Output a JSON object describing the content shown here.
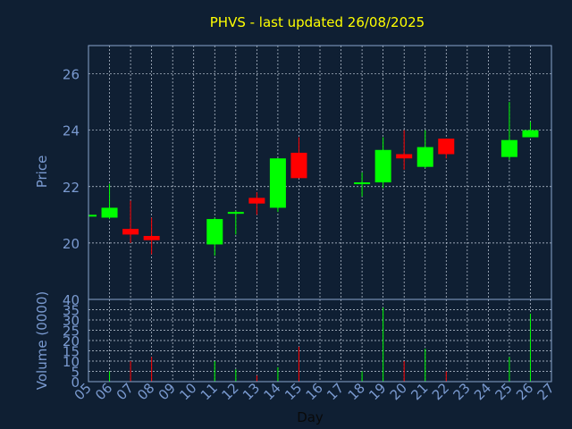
{
  "chart_data": [
    {
      "type": "candlestick",
      "title": "PHVS - last updated 26/08/2025",
      "ylabel": "Price",
      "ylim": [
        18,
        27
      ],
      "yticks": [
        20,
        22,
        24,
        26
      ],
      "grid": true,
      "x_tick_labels": [
        "05",
        "06",
        "07",
        "08",
        "09",
        "10",
        "11",
        "12",
        "13",
        "14",
        "15",
        "16",
        "17",
        "18",
        "19",
        "20",
        "21",
        "22",
        "23",
        "24",
        "25",
        "26",
        "27"
      ],
      "candles": [
        {
          "day": "05",
          "open": 21.0,
          "close": 21.0,
          "high": 21.05,
          "low": 20.95
        },
        {
          "day": "06",
          "open": 20.9,
          "close": 21.25,
          "high": 22.1,
          "low": 20.85
        },
        {
          "day": "07",
          "open": 20.5,
          "close": 20.3,
          "high": 21.5,
          "low": 20.0
        },
        {
          "day": "08",
          "open": 20.25,
          "close": 20.1,
          "high": 20.9,
          "low": 19.6
        },
        {
          "day": "11",
          "open": 19.95,
          "close": 20.85,
          "high": 20.9,
          "low": 19.55
        },
        {
          "day": "12",
          "open": 21.05,
          "close": 21.1,
          "high": 21.15,
          "low": 20.3
        },
        {
          "day": "13",
          "open": 21.6,
          "close": 21.4,
          "high": 21.8,
          "low": 21.0
        },
        {
          "day": "14",
          "open": 21.25,
          "close": 23.0,
          "high": 23.0,
          "low": 21.1
        },
        {
          "day": "15",
          "open": 23.2,
          "close": 22.3,
          "high": 23.75,
          "low": 22.3
        },
        {
          "day": "18",
          "open": 22.1,
          "close": 22.15,
          "high": 22.5,
          "low": 21.65
        },
        {
          "day": "19",
          "open": 22.15,
          "close": 23.3,
          "high": 23.75,
          "low": 21.95
        },
        {
          "day": "20",
          "open": 23.15,
          "close": 23.0,
          "high": 24.0,
          "low": 22.6
        },
        {
          "day": "21",
          "open": 22.7,
          "close": 23.4,
          "high": 24.0,
          "low": 22.65
        },
        {
          "day": "22",
          "open": 23.7,
          "close": 23.15,
          "high": 23.7,
          "low": 23.0
        },
        {
          "day": "25",
          "open": 23.05,
          "close": 23.65,
          "high": 25.0,
          "low": 22.95
        },
        {
          "day": "26",
          "open": 23.75,
          "close": 24.0,
          "high": 24.3,
          "low": 23.75
        }
      ]
    },
    {
      "type": "bar",
      "ylabel": "Volume (0000)",
      "xlabel": "Day",
      "ylim": [
        0,
        40
      ],
      "yticks": [
        0,
        5,
        10,
        15,
        20,
        25,
        30,
        35,
        40
      ],
      "grid": true,
      "bars": [
        {
          "day": "06",
          "value": 5,
          "direction": "up"
        },
        {
          "day": "07",
          "value": 10,
          "direction": "down"
        },
        {
          "day": "08",
          "value": 12,
          "direction": "down"
        },
        {
          "day": "11",
          "value": 10,
          "direction": "up"
        },
        {
          "day": "12",
          "value": 6,
          "direction": "up"
        },
        {
          "day": "13",
          "value": 3,
          "direction": "down"
        },
        {
          "day": "14",
          "value": 7,
          "direction": "up"
        },
        {
          "day": "15",
          "value": 17,
          "direction": "down"
        },
        {
          "day": "18",
          "value": 5,
          "direction": "up"
        },
        {
          "day": "19",
          "value": 36,
          "direction": "up"
        },
        {
          "day": "20",
          "value": 10,
          "direction": "down"
        },
        {
          "day": "21",
          "value": 16,
          "direction": "up"
        },
        {
          "day": "22",
          "value": 5,
          "direction": "down"
        },
        {
          "day": "25",
          "value": 12,
          "direction": "up"
        },
        {
          "day": "26",
          "value": 33,
          "direction": "up"
        }
      ]
    }
  ],
  "colors": {
    "background": "#0f1f33",
    "title": "#ffff00",
    "axis_text": "#7a9ad0",
    "frame": "#8aa6cc",
    "grid": "#c8d2e0",
    "up": "#00ff00",
    "down": "#ff0000"
  }
}
